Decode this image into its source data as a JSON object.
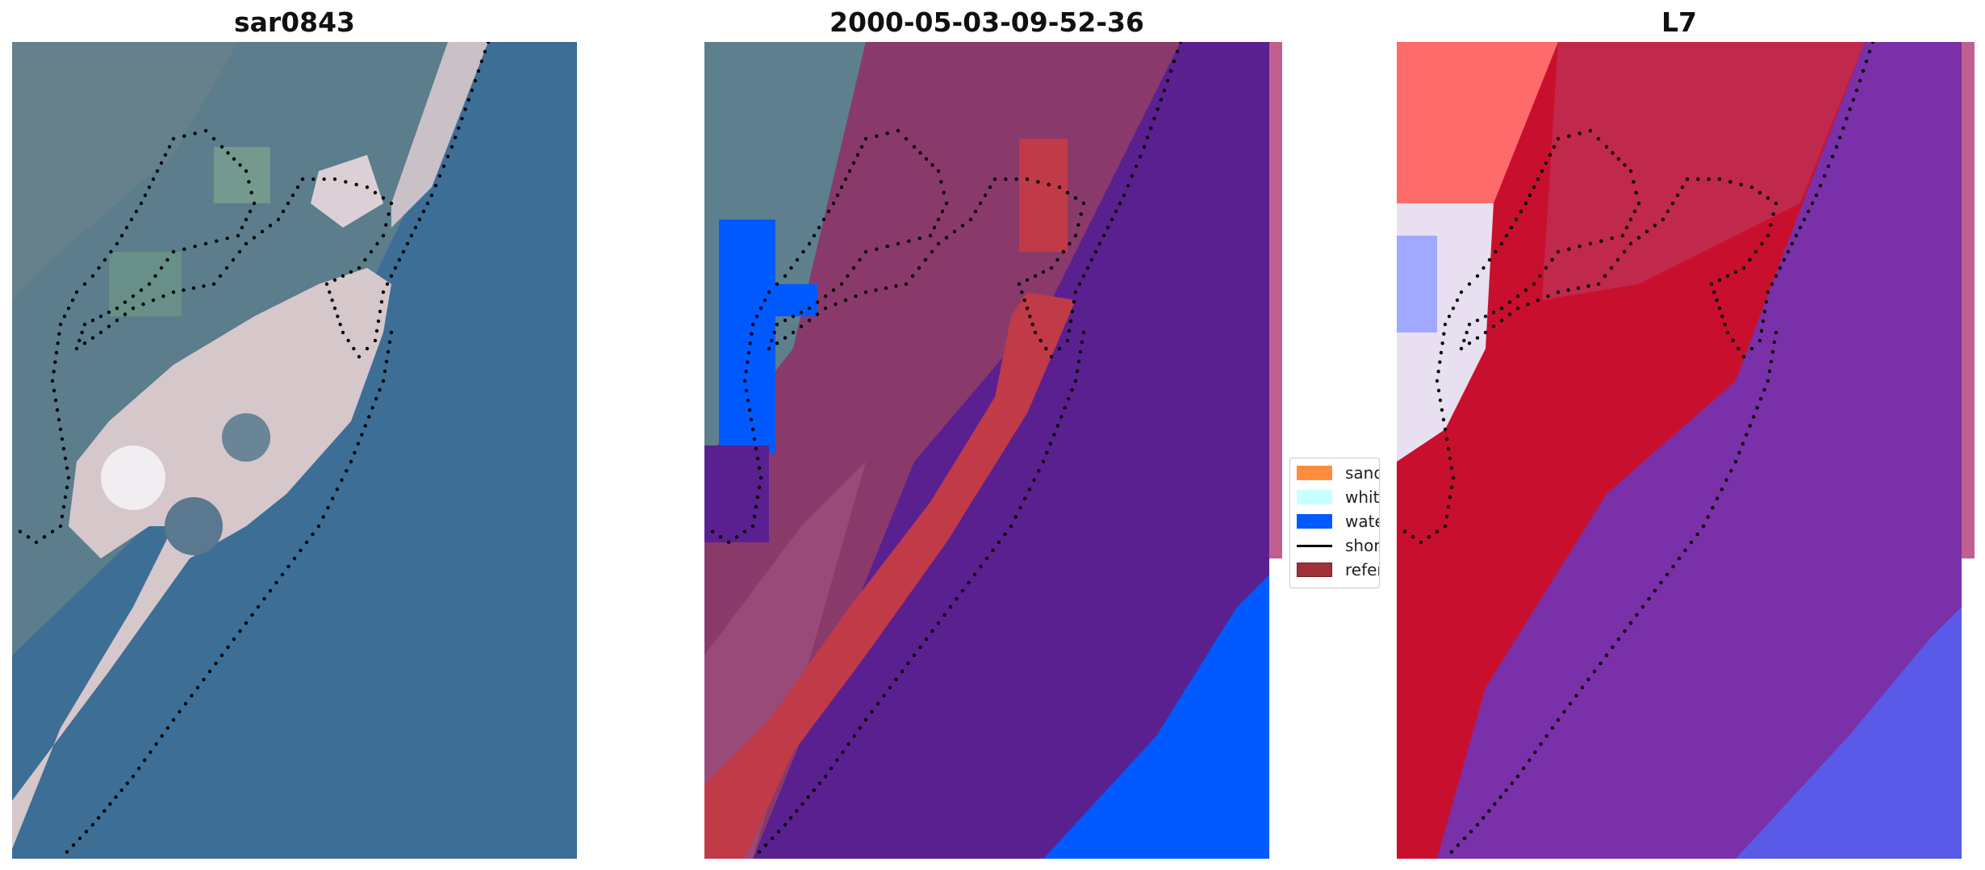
{
  "panels": [
    {
      "title": "sar0843"
    },
    {
      "title": "2000-05-03-09-52-36"
    },
    {
      "title": "L7"
    }
  ],
  "legend": {
    "items": [
      {
        "label": "sand",
        "color": "#ff8c3c",
        "kind": "patch"
      },
      {
        "label": "whitewater",
        "color": "#c8ffff",
        "kind": "patch"
      },
      {
        "label": "water",
        "color": "#005aff",
        "kind": "patch"
      },
      {
        "label": "shoreline",
        "color": "#000000",
        "kind": "line"
      },
      {
        "label": "reference",
        "color": "#a0303a",
        "kind": "patch"
      }
    ]
  },
  "colors": {
    "sea_rgb": "#3d6e96",
    "land_rgb": "#5a7a88",
    "sand_rgb": "#d8c8c8",
    "class_water": "#005aff",
    "class_other": "#5a2090",
    "class_land_overlay": "#8a3a6a",
    "class_reference": "#c03a48",
    "index_land": "#c8102e",
    "index_water": "#7a30a8",
    "index_deep": "#5a5ae8",
    "index_bright": "#ff6a6a"
  }
}
